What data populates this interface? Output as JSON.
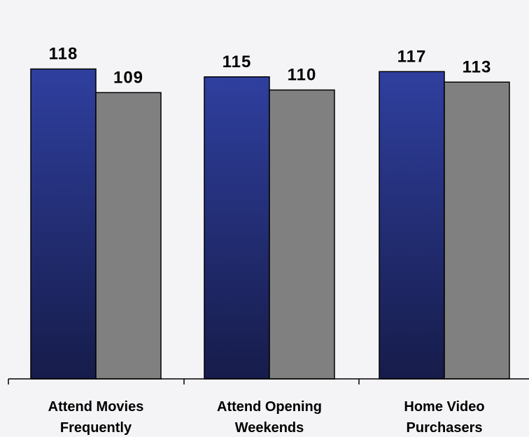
{
  "chart_data": {
    "type": "bar",
    "categories": [
      "Attend Movies Frequently",
      "Attend Opening Weekends",
      "Home Video Purchasers"
    ],
    "category_lines": [
      [
        "Attend Movies",
        "Frequently"
      ],
      [
        "Attend Opening",
        "Weekends"
      ],
      [
        "Home Video",
        "Purchasers"
      ]
    ],
    "series": [
      {
        "values": [
          118,
          115,
          117
        ],
        "color_top": "#2f3f9e",
        "color_bottom": "#161c4a"
      },
      {
        "values": [
          109,
          110,
          113
        ],
        "color": "#808080"
      }
    ],
    "value_labels": [
      [
        "118",
        "115",
        "117"
      ],
      [
        "109",
        "110",
        "113"
      ]
    ],
    "ylim": [
      0,
      125
    ],
    "grid": false,
    "legend": "none"
  }
}
